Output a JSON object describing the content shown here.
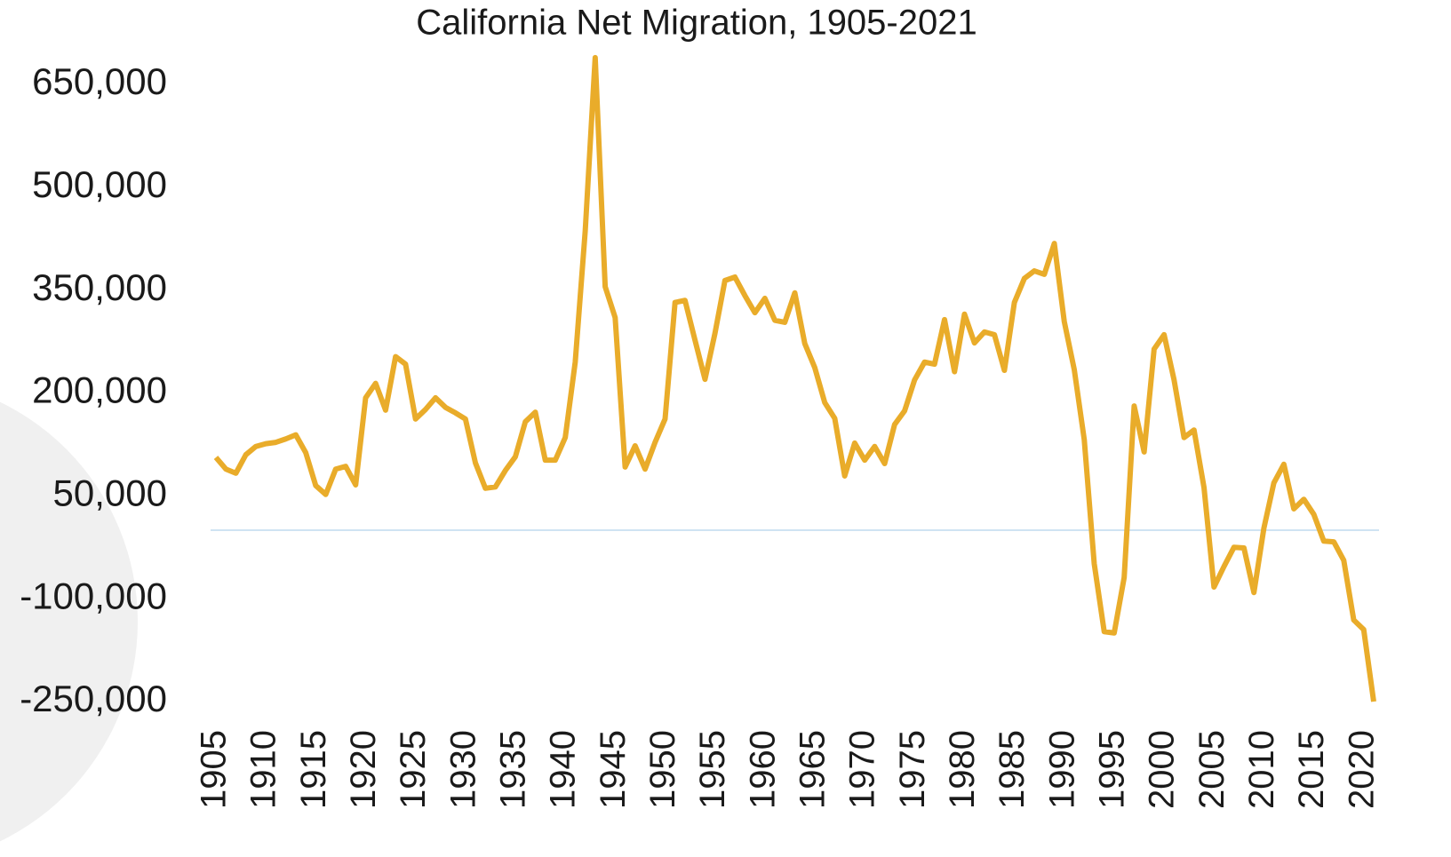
{
  "chart_data": {
    "type": "line",
    "title": "California Net Migration, 1905-2021",
    "x": [
      1905,
      1906,
      1907,
      1908,
      1909,
      1910,
      1911,
      1912,
      1913,
      1914,
      1915,
      1916,
      1917,
      1918,
      1919,
      1920,
      1921,
      1922,
      1923,
      1924,
      1925,
      1926,
      1927,
      1928,
      1929,
      1930,
      1931,
      1932,
      1933,
      1934,
      1935,
      1936,
      1937,
      1938,
      1939,
      1940,
      1941,
      1942,
      1943,
      1944,
      1945,
      1946,
      1947,
      1948,
      1949,
      1950,
      1951,
      1952,
      1953,
      1954,
      1955,
      1956,
      1957,
      1958,
      1959,
      1960,
      1961,
      1962,
      1963,
      1964,
      1965,
      1966,
      1967,
      1968,
      1969,
      1970,
      1971,
      1972,
      1973,
      1974,
      1975,
      1976,
      1977,
      1978,
      1979,
      1980,
      1981,
      1982,
      1983,
      1984,
      1985,
      1986,
      1987,
      1988,
      1989,
      1990,
      1991,
      1992,
      1993,
      1994,
      1995,
      1996,
      1997,
      1998,
      1999,
      2000,
      2001,
      2002,
      2003,
      2004,
      2005,
      2006,
      2007,
      2008,
      2009,
      2010,
      2011,
      2012,
      2013,
      2014,
      2015,
      2016,
      2017,
      2018,
      2019,
      2020,
      2021
    ],
    "series": [
      {
        "color": "#e9ac2a",
        "values": [
          106000,
          89000,
          83000,
          110000,
          122000,
          126000,
          128000,
          133000,
          139000,
          113000,
          65000,
          52000,
          89000,
          93000,
          66000,
          193000,
          214000,
          175000,
          253000,
          242000,
          162000,
          176000,
          193000,
          179000,
          171000,
          162000,
          98000,
          61000,
          63000,
          87000,
          107000,
          158000,
          172000,
          102000,
          102000,
          135000,
          245000,
          436000,
          689000,
          355000,
          310000,
          92000,
          123000,
          89000,
          128000,
          162000,
          332000,
          335000,
          277000,
          220000,
          287000,
          364000,
          369000,
          342000,
          317000,
          338000,
          306000,
          303000,
          346000,
          272000,
          237000,
          186000,
          163000,
          79000,
          127000,
          102000,
          122000,
          97000,
          154000,
          174000,
          219000,
          245000,
          242000,
          307000,
          231000,
          315000,
          273000,
          289000,
          285000,
          233000,
          332000,
          367000,
          378000,
          373000,
          418000,
          304000,
          234000,
          132000,
          -49000,
          -148000,
          -150000,
          -69000,
          181000,
          114000,
          264000,
          285000,
          219000,
          135000,
          146000,
          62000,
          -83000,
          -53000,
          -25000,
          -26000,
          -91000,
          3000,
          69000,
          96000,
          31000,
          45000,
          23000,
          -16000,
          -17000,
          -44000,
          -131000,
          -145000,
          -250000
        ]
      }
    ],
    "xlim": [
      1905,
      2021
    ],
    "xticks": [
      1905,
      1910,
      1915,
      1920,
      1925,
      1930,
      1935,
      1940,
      1945,
      1950,
      1955,
      1960,
      1965,
      1970,
      1975,
      1980,
      1985,
      1990,
      1995,
      2000,
      2005,
      2010,
      2015,
      2020
    ],
    "ylim": [
      -250000,
      650000
    ],
    "yticks": [
      {
        "value": -250000,
        "label": "-250,000"
      },
      {
        "value": -100000,
        "label": "-100,000"
      },
      {
        "value": 50000,
        "label": "50,000"
      },
      {
        "value": 200000,
        "label": "200,000"
      },
      {
        "value": 350000,
        "label": "350,000"
      },
      {
        "value": 500000,
        "label": "500,000"
      },
      {
        "value": 650000,
        "label": "650,000"
      }
    ]
  }
}
